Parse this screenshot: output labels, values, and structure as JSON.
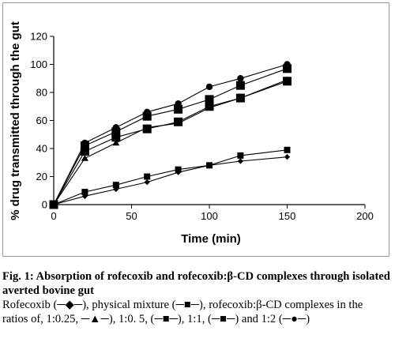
{
  "chart_data": {
    "type": "line",
    "xlabel": "Time (min)",
    "ylabel": "% drug transmitted through the gut",
    "xlim": [
      0,
      200
    ],
    "ylim": [
      0,
      120
    ],
    "xticks": [
      0,
      50,
      100,
      150,
      200
    ],
    "yticks": [
      0,
      20,
      40,
      60,
      80,
      100,
      120
    ],
    "grid": false,
    "series": [
      {
        "name": "Rofecoxib",
        "marker": "diamond",
        "x": [
          0,
          20,
          40,
          60,
          80,
          100,
          120,
          150
        ],
        "y": [
          0,
          6,
          11,
          16,
          23,
          28,
          31,
          34
        ]
      },
      {
        "name": "physical mixture",
        "marker": "small-square",
        "x": [
          0,
          20,
          40,
          60,
          80,
          100,
          120,
          150
        ],
        "y": [
          0,
          9,
          14,
          20,
          25,
          28,
          35,
          39
        ]
      },
      {
        "name": "1:0.25",
        "marker": "triangle",
        "x": [
          0,
          20,
          40,
          60,
          80,
          100,
          120,
          150
        ],
        "y": [
          0,
          33,
          44,
          55,
          58,
          69,
          76,
          89
        ]
      },
      {
        "name": "1:0.5",
        "marker": "large-square",
        "x": [
          0,
          20,
          40,
          60,
          80,
          100,
          120,
          150
        ],
        "y": [
          0,
          38,
          48,
          54,
          59,
          70,
          76,
          88
        ]
      },
      {
        "name": "1:1",
        "marker": "large-square",
        "x": [
          0,
          20,
          40,
          60,
          80,
          100,
          120,
          150
        ],
        "y": [
          0,
          42,
          52,
          63,
          68,
          75,
          85,
          97
        ]
      },
      {
        "name": "1:2",
        "marker": "circle",
        "x": [
          0,
          20,
          40,
          60,
          80,
          100,
          120,
          150
        ],
        "y": [
          0,
          44,
          55,
          66,
          72,
          84,
          90,
          100
        ]
      }
    ]
  },
  "caption": {
    "title": "Fig. 1: Absorption of rofecoxib and rofecoxib:β-CD complexes through isolated averted bovine gut",
    "legend_text": "Rofecoxib (─◆─), physical mixture (─■─), rofecoxib:β-CD complexes in the ratios of, 1:0.25, ─▲─), 1:0. 5, (─■─), 1:1, (─■─) and 1:2 (─●─)"
  },
  "colors": {
    "series": "#000000",
    "frame": "#9a9a9a"
  }
}
